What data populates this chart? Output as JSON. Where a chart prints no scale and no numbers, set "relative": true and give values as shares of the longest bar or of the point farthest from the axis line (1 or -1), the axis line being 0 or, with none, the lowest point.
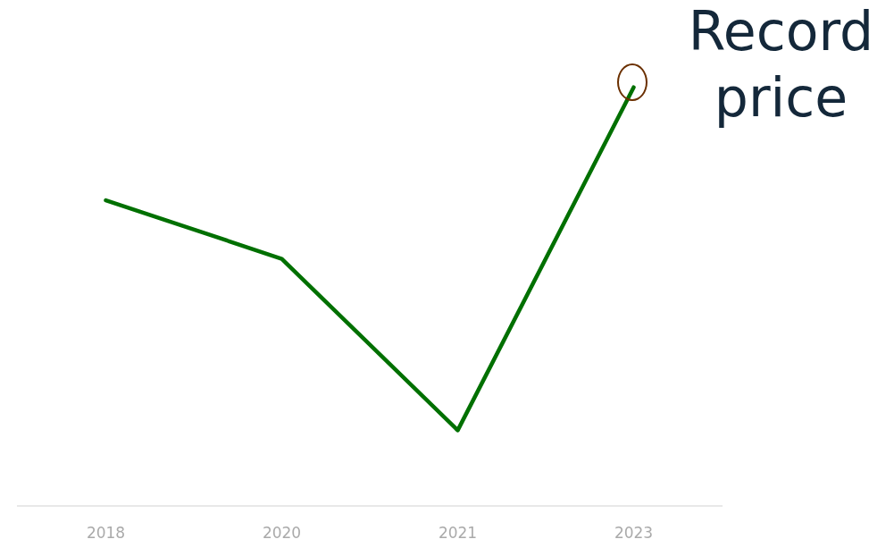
{
  "chart_data": {
    "type": "line",
    "relative": true,
    "categories": [
      "2018",
      "2020",
      "2021",
      "2023"
    ],
    "series": [
      {
        "color": "#007000",
        "values": [
          0.73,
          0.59,
          0.18,
          1
        ]
      }
    ],
    "annotations": [
      {
        "text": "Record price",
        "x": "2023",
        "y": 1
      }
    ],
    "grid": false,
    "legend": false,
    "marker": "none",
    "line_style": "solid",
    "tick_labels": "x"
  }
}
